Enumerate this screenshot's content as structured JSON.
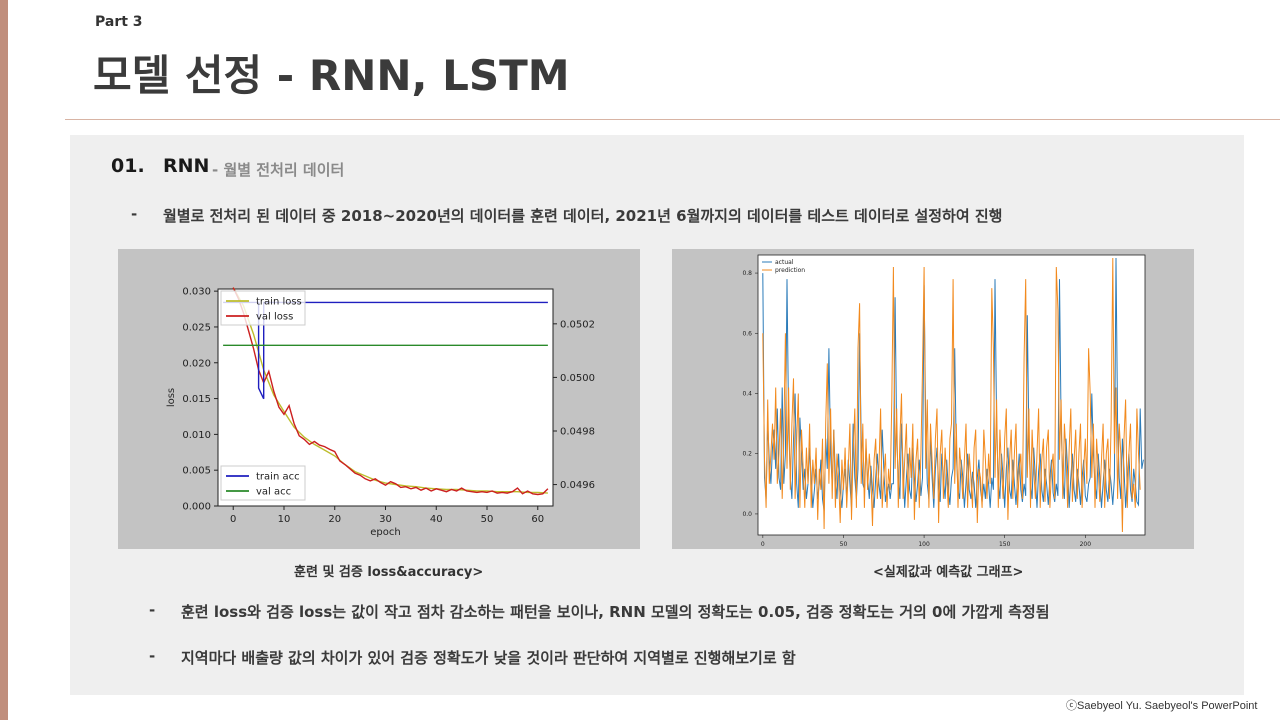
{
  "header": {
    "part": "Part 3",
    "title": "모델 선정 - RNN, LSTM"
  },
  "section": {
    "number": "01.",
    "title": "RNN",
    "subtitle": "- 월별 전처리 데이터"
  },
  "bullets": {
    "b1": "월별로 전처리 된 데이터 중 2018~2020년의 데이터를 훈련 데이터, 2021년 6월까지의 데이터를 테스트 데이터로 설정하여 진행",
    "b2": "훈련 loss와 검증 loss는 값이 작고 점차 감소하는 패턴을 보이나, RNN 모델의 정확도는 0.05, 검증 정확도는 거의 0에 가깝게 측정됨",
    "b3": "지역마다 배출량 값의 차이가 있어 검증 정확도가 낮을 것이라 판단하여 지역별로 진행해보기로 함",
    "dash": "-"
  },
  "captions": {
    "left": "훈련 및 검증 loss&accuracy>",
    "right": "<실제값과 예측값 그래프>"
  },
  "footer": "ⓒSaebyeol Yu. Saebyeol's PowerPoint",
  "colors": {
    "accent": "#c08e7c",
    "panel": "#efefef",
    "figure_bg": "#c3c3c3"
  },
  "chart_data": [
    {
      "type": "line",
      "xlabel": "epoch",
      "ylabel": "loss",
      "xlim": [
        -3,
        63
      ],
      "ylim": [
        0,
        0.0303
      ],
      "y2lim": [
        0.04952,
        0.05033
      ],
      "xticks": [
        0,
        10,
        20,
        30,
        40,
        50,
        60
      ],
      "yticks": [
        0.0,
        0.005,
        0.01,
        0.015,
        0.02,
        0.025,
        0.03
      ],
      "yticklabels": [
        "0.000",
        "0.005",
        "0.010",
        "0.015",
        "0.020",
        "0.025",
        "0.030"
      ],
      "y2ticks": [
        0.0496,
        0.0498,
        0.05,
        0.0502
      ],
      "y2ticklabels": [
        "0.0496",
        "0.0498",
        "0.0500",
        "0.0502"
      ],
      "legend_top": [
        "train loss",
        "val loss"
      ],
      "legend_bottom": [
        "train acc",
        "val acc"
      ],
      "series": [
        {
          "name": "train loss",
          "color": "#bdbd2c",
          "axis": "left",
          "x": [
            0,
            2,
            4,
            6,
            8,
            10,
            12,
            14,
            16,
            18,
            20,
            22,
            24,
            26,
            28,
            30,
            32,
            34,
            36,
            38,
            40,
            42,
            44,
            46,
            48,
            50,
            52,
            54,
            56,
            58,
            60,
            62
          ],
          "values": [
            0.0305,
            0.028,
            0.024,
            0.019,
            0.0155,
            0.0132,
            0.011,
            0.0096,
            0.0086,
            0.0078,
            0.007,
            0.0058,
            0.0048,
            0.0042,
            0.0036,
            0.0032,
            0.003,
            0.0028,
            0.0027,
            0.0025,
            0.0024,
            0.0023,
            0.0023,
            0.0022,
            0.0021,
            0.0021,
            0.002,
            0.002,
            0.002,
            0.0019,
            0.0019,
            0.0018
          ]
        },
        {
          "name": "val loss",
          "color": "#cc1f1f",
          "axis": "left",
          "x": [
            0,
            1,
            2,
            3,
            4,
            5,
            6,
            7,
            8,
            9,
            10,
            11,
            12,
            13,
            14,
            15,
            16,
            17,
            18,
            19,
            20,
            21,
            22,
            23,
            24,
            25,
            26,
            27,
            28,
            29,
            30,
            31,
            32,
            33,
            34,
            35,
            36,
            37,
            38,
            39,
            40,
            41,
            42,
            43,
            44,
            45,
            46,
            47,
            48,
            49,
            50,
            51,
            52,
            53,
            54,
            55,
            56,
            57,
            58,
            59,
            60,
            61,
            62
          ],
          "values": [
            0.0305,
            0.029,
            0.027,
            0.0245,
            0.022,
            0.019,
            0.0172,
            0.0188,
            0.016,
            0.0138,
            0.0128,
            0.014,
            0.0115,
            0.0098,
            0.0093,
            0.0086,
            0.009,
            0.0085,
            0.0083,
            0.0079,
            0.0076,
            0.0063,
            0.0058,
            0.0052,
            0.0046,
            0.0043,
            0.0038,
            0.0035,
            0.0038,
            0.0033,
            0.0029,
            0.0034,
            0.0031,
            0.0026,
            0.0027,
            0.0024,
            0.0026,
            0.0022,
            0.0025,
            0.0021,
            0.0024,
            0.0022,
            0.002,
            0.0023,
            0.0021,
            0.0025,
            0.0021,
            0.002,
            0.0019,
            0.002,
            0.0019,
            0.0021,
            0.0018,
            0.0019,
            0.0018,
            0.002,
            0.0025,
            0.0017,
            0.0021,
            0.0017,
            0.0016,
            0.0017,
            0.0024
          ]
        },
        {
          "name": "train acc",
          "color": "#1f1fbf",
          "axis": "right",
          "x": [
            -2,
            5,
            5,
            6,
            6,
            7,
            7,
            62
          ],
          "values": [
            0.05028,
            0.05028,
            0.04996,
            0.04992,
            0.05028,
            0.05028,
            0.05028,
            0.05028
          ]
        },
        {
          "name": "val acc",
          "color": "#2a8a2a",
          "axis": "right",
          "x": [
            -2,
            62
          ],
          "values": [
            0.05012,
            0.05012
          ]
        }
      ]
    },
    {
      "type": "line",
      "xlim": [
        -3,
        237
      ],
      "ylim": [
        -0.07,
        0.86
      ],
      "xticks": [
        0,
        50,
        100,
        150,
        200
      ],
      "yticks": [
        0.0,
        0.2,
        0.4,
        0.6,
        0.8
      ],
      "yticklabels": [
        "0.0",
        "0.2",
        "0.4",
        "0.6",
        "0.8"
      ],
      "legend": [
        "actual",
        "prediction"
      ],
      "series": [
        {
          "name": "actual",
          "color": "#2b7bb9",
          "values": [
            0.8,
            0.12,
            0.05,
            0.3,
            0.18,
            0.1,
            0.22,
            0.28,
            0.15,
            0.35,
            0.12,
            0.08,
            0.42,
            0.1,
            0.2,
            0.78,
            0.3,
            0.12,
            0.05,
            0.25,
            0.4,
            0.1,
            0.02,
            0.32,
            0.2,
            0.08,
            0.15,
            0.05,
            0.1,
            0.22,
            0.12,
            0.02,
            0.08,
            0.15,
            0.05,
            0.1,
            0.18,
            0.05,
            0.01,
            0.25,
            0.15,
            0.55,
            0.2,
            0.1,
            0.28,
            0.12,
            0.05,
            0.2,
            0.08,
            0.02,
            0.1,
            0.15,
            0.05,
            0.18,
            0.1,
            0.02,
            0.3,
            0.12,
            0.05,
            0.15,
            0.6,
            0.25,
            0.1,
            0.08,
            0.22,
            0.12,
            0.05,
            0.16,
            0.08,
            0.02,
            0.12,
            0.2,
            0.1,
            0.05,
            0.28,
            0.15,
            0.04,
            0.08,
            0.1,
            0.05,
            0.1,
            0.1,
            0.72,
            0.25,
            0.12,
            0.05,
            0.3,
            0.15,
            0.02,
            0.12,
            0.2,
            0.08,
            0.05,
            0.22,
            0.12,
            0.04,
            0.1,
            0.18,
            0.06,
            0.12,
            0.76,
            0.3,
            0.1,
            0.05,
            0.25,
            0.12,
            0.02,
            0.15,
            0.22,
            0.1,
            0.04,
            0.2,
            0.12,
            0.05,
            0.18,
            0.08,
            0.03,
            0.12,
            0.15,
            0.55,
            0.2,
            0.08,
            0.05,
            0.18,
            0.12,
            0.02,
            0.1,
            0.2,
            0.08,
            0.05,
            0.14,
            0.1,
            0.02,
            0.12,
            0.18,
            0.08,
            0.04,
            0.1,
            0.05,
            0.15,
            0.1,
            0.02,
            0.12,
            0.08,
            0.78,
            0.3,
            0.1,
            0.05,
            0.2,
            0.12,
            0.02,
            0.15,
            0.22,
            0.08,
            0.05,
            0.18,
            0.1,
            0.03,
            0.12,
            0.2,
            0.08,
            0.04,
            0.1,
            0.06,
            0.66,
            0.25,
            0.1,
            0.05,
            0.22,
            0.12,
            0.02,
            0.14,
            0.2,
            0.08,
            0.04,
            0.15,
            0.1,
            0.03,
            0.12,
            0.18,
            0.07,
            0.04,
            0.1,
            0.06,
            0.78,
            0.3,
            0.12,
            0.05,
            0.25,
            0.15,
            0.02,
            0.12,
            0.2,
            0.08,
            0.04,
            0.15,
            0.1,
            0.03,
            0.12,
            0.18,
            0.06,
            0.04,
            0.1,
            0.12,
            0.4,
            0.2,
            0.1,
            0.05,
            0.2,
            0.12,
            0.02,
            0.1,
            0.18,
            0.08,
            0.04,
            0.15,
            0.1,
            0.03,
            0.12,
            0.85,
            0.3,
            0.12,
            0.05,
            0.25,
            0.15,
            0.02,
            0.12,
            0.2,
            0.08,
            0.04,
            0.15,
            0.1,
            0.04,
            0.03,
            0.35,
            0.15,
            0.18
          ]
        },
        {
          "name": "prediction",
          "color": "#f28a1e",
          "values": [
            0.6,
            0.18,
            0.02,
            0.38,
            0.1,
            0.2,
            0.3,
            0.18,
            0.42,
            0.1,
            0.2,
            0.35,
            0.05,
            0.25,
            0.6,
            0.15,
            0.42,
            0.08,
            0.3,
            0.45,
            0.05,
            0.25,
            0.4,
            0.02,
            0.28,
            0.15,
            0.02,
            0.22,
            0.1,
            0.3,
            0.02,
            0.18,
            0.1,
            0.22,
            -0.02,
            0.15,
            0.08,
            0.25,
            -0.05,
            0.3,
            0.5,
            0.1,
            0.35,
            0.05,
            0.28,
            0.02,
            0.2,
            0.12,
            -0.03,
            0.18,
            0.08,
            0.22,
            0.02,
            0.15,
            0.3,
            -0.02,
            0.2,
            0.35,
            0.02,
            0.55,
            0.7,
            0.1,
            0.3,
            0.02,
            0.25,
            0.08,
            0.2,
            0.12,
            -0.04,
            0.18,
            0.25,
            0.05,
            0.15,
            0.35,
            0.02,
            0.12,
            0.2,
            0.02,
            0.15,
            0.08,
            0.38,
            0.82,
            0.15,
            0.35,
            0.02,
            0.25,
            0.4,
            0.05,
            0.18,
            0.3,
            0.02,
            0.22,
            0.12,
            0.3,
            -0.02,
            0.18,
            0.25,
            0.02,
            0.2,
            0.48,
            0.82,
            0.15,
            0.38,
            0.02,
            0.3,
            0.18,
            0.05,
            0.25,
            0.35,
            -0.03,
            0.2,
            0.28,
            0.05,
            0.22,
            0.12,
            0.02,
            0.25,
            0.3,
            0.78,
            0.1,
            0.3,
            0.02,
            0.22,
            0.15,
            0.05,
            0.18,
            0.3,
            0.02,
            0.2,
            0.12,
            0.02,
            0.22,
            0.28,
            -0.03,
            0.15,
            0.12,
            0.02,
            0.28,
            0.18,
            0.05,
            0.2,
            0.1,
            0.75,
            0.55,
            0.12,
            0.38,
            0.02,
            0.28,
            0.15,
            0.05,
            0.25,
            0.35,
            -0.02,
            0.18,
            0.28,
            0.05,
            0.2,
            0.3,
            0.02,
            0.15,
            0.2,
            0.05,
            0.52,
            0.78,
            0.12,
            0.35,
            0.02,
            0.28,
            0.15,
            0.05,
            0.2,
            0.35,
            0.02,
            0.18,
            0.25,
            0.04,
            0.22,
            0.28,
            0.02,
            0.15,
            0.2,
            0.05,
            0.82,
            0.68,
            0.18,
            0.38,
            0.05,
            0.3,
            0.2,
            0.02,
            0.22,
            0.35,
            0.04,
            0.18,
            0.28,
            0.05,
            0.2,
            0.3,
            0.02,
            0.15,
            0.25,
            0.1,
            0.55,
            0.4,
            0.12,
            0.3,
            0.02,
            0.25,
            0.15,
            0.04,
            0.18,
            0.3,
            0.02,
            0.2,
            0.25,
            0.05,
            0.3,
            0.85,
            0.2,
            0.42,
            0.05,
            0.3,
            0.2,
            -0.06,
            0.25,
            0.38,
            0.02,
            0.2,
            0.3,
            0.05,
            0.1,
            0.02,
            0.35,
            0.2,
            0.08
          ]
        }
      ]
    }
  ]
}
